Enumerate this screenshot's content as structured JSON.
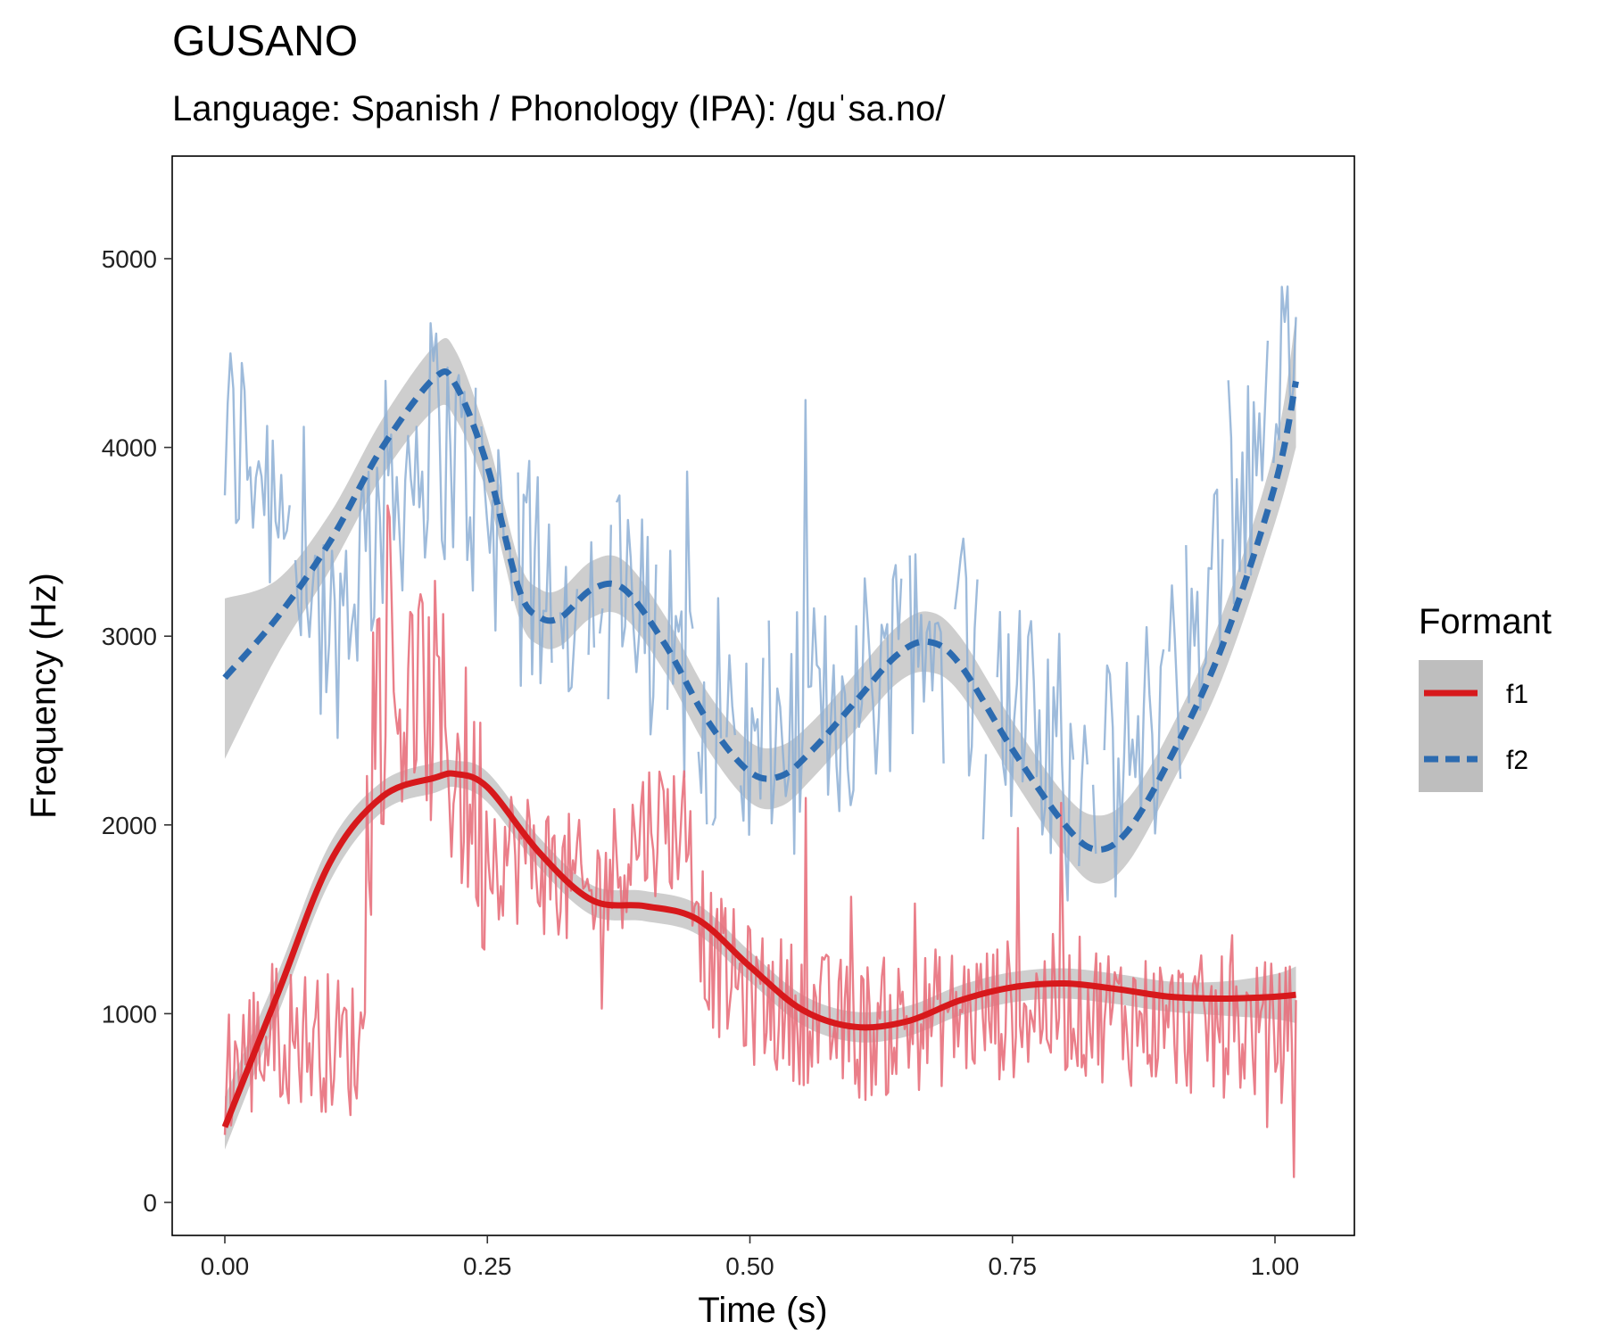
{
  "chart_data": {
    "type": "line",
    "title": "GUSANO",
    "subtitle": "Language: Spanish / Phonology (IPA): /guˈsa.no/",
    "xlabel": "Time (s)",
    "ylabel": "Frequency (Hz)",
    "xlim": [
      -0.05,
      1.07
    ],
    "ylim": [
      -150,
      5500
    ],
    "xticks": [
      0,
      0.25,
      0.5,
      0.75,
      1
    ],
    "xtick_labels": [
      "0.00",
      "0.25",
      "0.50",
      "0.75",
      "1.00"
    ],
    "yticks": [
      0,
      1000,
      2000,
      3000,
      4000,
      5000
    ],
    "ytick_labels": [
      "0",
      "1000",
      "2000",
      "3000",
      "4000",
      "5000"
    ],
    "grid": false,
    "legend": {
      "title": "Formant",
      "position": "right"
    },
    "series": [
      {
        "name": "f1",
        "color": "#D7191C",
        "raw_color": "#E8707C",
        "line_style": "solid",
        "raw_guide": [
          [
            0,
            700
          ],
          [
            0.05,
            900
          ],
          [
            0.1,
            850
          ],
          [
            0.13,
            800
          ],
          [
            0.14,
            2700
          ],
          [
            0.2,
            2600
          ],
          [
            0.25,
            1900
          ],
          [
            0.3,
            1800
          ],
          [
            0.35,
            1600
          ],
          [
            0.4,
            2000
          ],
          [
            0.44,
            2000
          ],
          [
            0.46,
            1300
          ],
          [
            0.5,
            1100
          ],
          [
            0.55,
            1000
          ],
          [
            0.6,
            900
          ],
          [
            0.7,
            1000
          ],
          [
            0.8,
            1050
          ],
          [
            0.9,
            950
          ],
          [
            1,
            900
          ],
          [
            1.02,
            900
          ]
        ],
        "smooth": [
          [
            0,
            400
          ],
          [
            0.05,
            1100
          ],
          [
            0.1,
            1800
          ],
          [
            0.15,
            2150
          ],
          [
            0.2,
            2250
          ],
          [
            0.22,
            2270
          ],
          [
            0.25,
            2200
          ],
          [
            0.3,
            1850
          ],
          [
            0.35,
            1600
          ],
          [
            0.4,
            1570
          ],
          [
            0.45,
            1500
          ],
          [
            0.5,
            1250
          ],
          [
            0.55,
            1020
          ],
          [
            0.6,
            930
          ],
          [
            0.65,
            960
          ],
          [
            0.7,
            1070
          ],
          [
            0.75,
            1140
          ],
          [
            0.8,
            1160
          ],
          [
            0.85,
            1130
          ],
          [
            0.9,
            1090
          ],
          [
            0.95,
            1080
          ],
          [
            1,
            1090
          ],
          [
            1.02,
            1100
          ]
        ],
        "band": [
          [
            0,
            280,
            560
          ],
          [
            0.05,
            990,
            1210
          ],
          [
            0.1,
            1700,
            1900
          ],
          [
            0.15,
            2070,
            2230
          ],
          [
            0.2,
            2170,
            2330
          ],
          [
            0.22,
            2200,
            2340
          ],
          [
            0.25,
            2120,
            2280
          ],
          [
            0.3,
            1770,
            1930
          ],
          [
            0.35,
            1520,
            1680
          ],
          [
            0.4,
            1490,
            1650
          ],
          [
            0.45,
            1420,
            1580
          ],
          [
            0.5,
            1170,
            1330
          ],
          [
            0.55,
            940,
            1100
          ],
          [
            0.6,
            850,
            1010
          ],
          [
            0.65,
            880,
            1040
          ],
          [
            0.7,
            990,
            1150
          ],
          [
            0.75,
            1060,
            1220
          ],
          [
            0.8,
            1080,
            1240
          ],
          [
            0.85,
            1050,
            1210
          ],
          [
            0.9,
            1010,
            1170
          ],
          [
            0.95,
            990,
            1170
          ],
          [
            1,
            970,
            1210
          ],
          [
            1.02,
            950,
            1250
          ]
        ]
      },
      {
        "name": "f2",
        "color": "#2C6BB0",
        "raw_color": "#8DAFD5",
        "line_style": "dashed",
        "raw_guide": [
          [
            0.03,
            4000
          ],
          [
            0.1,
            3000
          ],
          [
            0.15,
            3700
          ],
          [
            0.2,
            4100
          ],
          [
            0.25,
            3700
          ],
          [
            0.3,
            3200
          ],
          [
            0.35,
            3300
          ],
          [
            0.4,
            3000
          ],
          [
            0.45,
            2700
          ],
          [
            0.5,
            2400
          ],
          [
            0.55,
            2500
          ],
          [
            0.6,
            2700
          ],
          [
            0.65,
            3000
          ],
          [
            0.7,
            2900
          ],
          [
            0.75,
            2600
          ],
          [
            0.8,
            2200
          ],
          [
            0.85,
            2200
          ],
          [
            0.9,
            2700
          ],
          [
            0.95,
            3500
          ],
          [
            1,
            4300
          ],
          [
            1.02,
            4400
          ]
        ],
        "smooth": [
          [
            0,
            2780
          ],
          [
            0.05,
            3100
          ],
          [
            0.1,
            3500
          ],
          [
            0.15,
            4000
          ],
          [
            0.2,
            4370
          ],
          [
            0.22,
            4330
          ],
          [
            0.25,
            3900
          ],
          [
            0.28,
            3250
          ],
          [
            0.3,
            3100
          ],
          [
            0.32,
            3100
          ],
          [
            0.35,
            3250
          ],
          [
            0.38,
            3250
          ],
          [
            0.42,
            2950
          ],
          [
            0.46,
            2550
          ],
          [
            0.5,
            2280
          ],
          [
            0.53,
            2260
          ],
          [
            0.56,
            2400
          ],
          [
            0.6,
            2650
          ],
          [
            0.64,
            2900
          ],
          [
            0.67,
            2970
          ],
          [
            0.7,
            2850
          ],
          [
            0.75,
            2400
          ],
          [
            0.8,
            2000
          ],
          [
            0.83,
            1870
          ],
          [
            0.86,
            1970
          ],
          [
            0.9,
            2350
          ],
          [
            0.95,
            2950
          ],
          [
            1,
            3800
          ],
          [
            1.02,
            4350
          ]
        ],
        "band": [
          [
            0,
            2350,
            3200
          ],
          [
            0.05,
            2900,
            3300
          ],
          [
            0.1,
            3350,
            3650
          ],
          [
            0.15,
            3850,
            4150
          ],
          [
            0.2,
            4200,
            4540
          ],
          [
            0.22,
            4150,
            4510
          ],
          [
            0.25,
            3750,
            4050
          ],
          [
            0.28,
            3100,
            3400
          ],
          [
            0.3,
            2950,
            3250
          ],
          [
            0.32,
            2950,
            3250
          ],
          [
            0.35,
            3100,
            3400
          ],
          [
            0.38,
            3100,
            3400
          ],
          [
            0.42,
            2800,
            3100
          ],
          [
            0.46,
            2400,
            2700
          ],
          [
            0.5,
            2120,
            2440
          ],
          [
            0.53,
            2100,
            2420
          ],
          [
            0.56,
            2250,
            2550
          ],
          [
            0.6,
            2500,
            2800
          ],
          [
            0.64,
            2750,
            3050
          ],
          [
            0.67,
            2810,
            3130
          ],
          [
            0.7,
            2700,
            3000
          ],
          [
            0.75,
            2250,
            2550
          ],
          [
            0.8,
            1840,
            2160
          ],
          [
            0.83,
            1690,
            2050
          ],
          [
            0.86,
            1800,
            2140
          ],
          [
            0.9,
            2200,
            2500
          ],
          [
            0.95,
            2780,
            3120
          ],
          [
            1,
            3600,
            4000
          ],
          [
            1.02,
            4000,
            4700
          ]
        ]
      }
    ]
  }
}
